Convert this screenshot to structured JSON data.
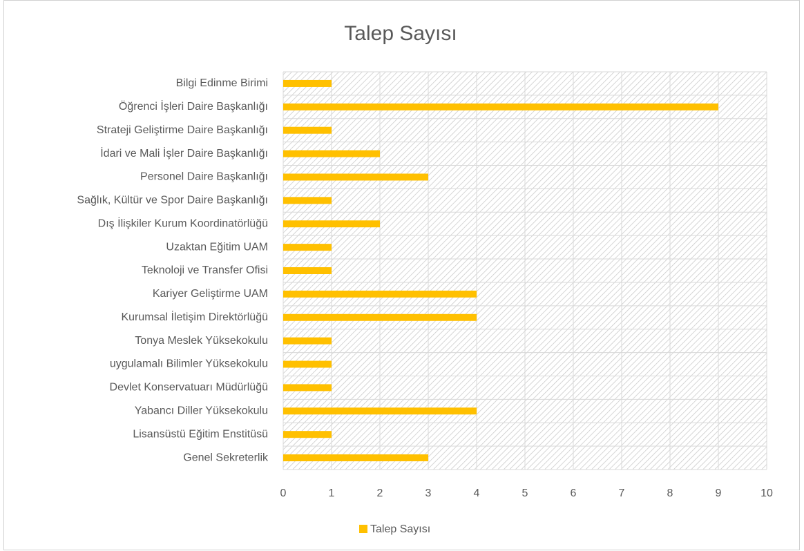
{
  "chart_data": {
    "type": "bar",
    "orientation": "horizontal",
    "title": "Talep Sayısı",
    "categories": [
      "Bilgi Edinme Birimi",
      "Öğrenci İşleri Daire Başkanlığı",
      "Strateji Geliştirme Daire Başkanlığı",
      "İdari ve Mali İşler Daire Başkanlığı",
      "Personel Daire Başkanlığı",
      "Sağlık, Kültür ve Spor Daire Başkanlığı",
      "Dış İlişkiler Kurum Koordinatörlüğü",
      "Uzaktan Eğitim UAM",
      "Teknoloji ve Transfer Ofisi",
      "Kariyer Geliştirme UAM",
      "Kurumsal İletişim Direktörlüğü",
      "Tonya Meslek Yüksekokulu ",
      "uygulamalı Bilimler Yüksekokulu",
      "Devlet Konservatuarı Müdürlüğü",
      "Yabancı Diller Yüksekokulu",
      "Lisansüstü Eğitim Enstitüsü",
      "Genel Sekreterlik"
    ],
    "series": [
      {
        "name": "Talep Sayısı",
        "color": "#FFC000",
        "values": [
          1,
          9,
          1,
          2,
          3,
          1,
          2,
          1,
          1,
          4,
          4,
          1,
          1,
          1,
          4,
          1,
          3
        ]
      }
    ],
    "xlim": [
      0,
      10
    ],
    "xticks": [
      0,
      1,
      2,
      3,
      4,
      5,
      6,
      7,
      8,
      9,
      10
    ],
    "grid": true,
    "legend": "bottom"
  }
}
